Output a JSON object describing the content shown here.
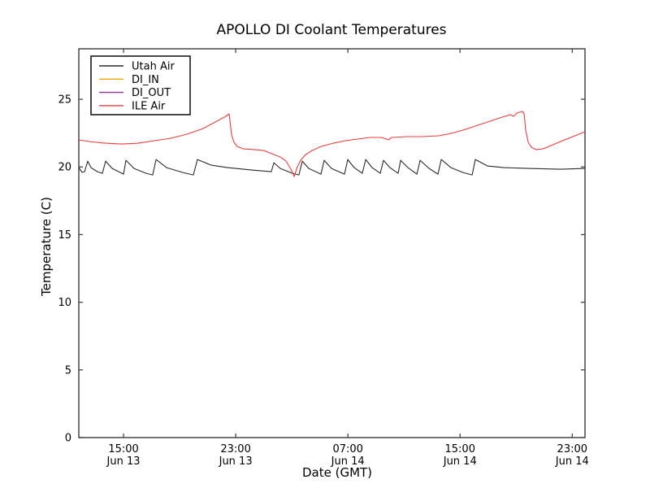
{
  "figure": {
    "background": "#ffffff",
    "frame_color": "#3a3a3a"
  },
  "chart_data": {
    "type": "line",
    "title": "APOLLO DI Coolant Temperatures",
    "xlabel": "Date (GMT)",
    "ylabel": "Temperature (C)",
    "xlim": [
      0,
      36.1
    ],
    "ylim": [
      0,
      28.73
    ],
    "grid": false,
    "legend_position": "upper-left",
    "x_ticks": [
      {
        "t": 3.19,
        "time": "15:00",
        "date": "Jun 13"
      },
      {
        "t": 11.19,
        "time": "23:00",
        "date": "Jun 13"
      },
      {
        "t": 19.19,
        "time": "07:00",
        "date": "Jun 14"
      },
      {
        "t": 27.19,
        "time": "15:00",
        "date": "Jun 14"
      },
      {
        "t": 35.19,
        "time": "23:00",
        "date": "Jun 14"
      }
    ],
    "y_ticks": [
      0,
      5,
      10,
      15,
      20,
      25
    ],
    "series": [
      {
        "name": "Utah Air",
        "color": "#2b2b2b",
        "points": [
          [
            0,
            19.95
          ],
          [
            0.23,
            19.6
          ],
          [
            0.41,
            19.65
          ],
          [
            0.64,
            20.43
          ],
          [
            0.87,
            19.95
          ],
          [
            1.33,
            19.65
          ],
          [
            1.68,
            19.53
          ],
          [
            1.91,
            20.43
          ],
          [
            2.38,
            19.89
          ],
          [
            2.96,
            19.59
          ],
          [
            3.19,
            19.47
          ],
          [
            3.36,
            20.49
          ],
          [
            3.94,
            19.89
          ],
          [
            4.81,
            19.53
          ],
          [
            5.27,
            19.41
          ],
          [
            5.51,
            20.55
          ],
          [
            6.26,
            19.95
          ],
          [
            7.42,
            19.59
          ],
          [
            8.17,
            19.41
          ],
          [
            8.46,
            20.55
          ],
          [
            9.45,
            20.13
          ],
          [
            10.6,
            19.95
          ],
          [
            12.34,
            19.77
          ],
          [
            13.73,
            19.65
          ],
          [
            13.91,
            20.31
          ],
          [
            14.37,
            19.89
          ],
          [
            15.24,
            19.53
          ],
          [
            15.7,
            19.41
          ],
          [
            15.94,
            20.43
          ],
          [
            16.4,
            19.89
          ],
          [
            17.27,
            19.47
          ],
          [
            17.5,
            20.49
          ],
          [
            18.02,
            19.89
          ],
          [
            18.95,
            19.47
          ],
          [
            19.18,
            20.55
          ],
          [
            19.64,
            19.95
          ],
          [
            20.22,
            19.53
          ],
          [
            20.46,
            20.55
          ],
          [
            20.92,
            19.95
          ],
          [
            21.5,
            19.53
          ],
          [
            21.73,
            20.49
          ],
          [
            22.19,
            19.95
          ],
          [
            22.77,
            19.53
          ],
          [
            22.95,
            20.49
          ],
          [
            23.47,
            19.95
          ],
          [
            24.11,
            19.47
          ],
          [
            24.34,
            20.49
          ],
          [
            24.98,
            19.89
          ],
          [
            25.61,
            19.47
          ],
          [
            25.85,
            20.55
          ],
          [
            26.54,
            19.95
          ],
          [
            27.41,
            19.59
          ],
          [
            28.05,
            19.41
          ],
          [
            28.28,
            20.55
          ],
          [
            29.15,
            20.07
          ],
          [
            30.31,
            19.95
          ],
          [
            32.05,
            19.89
          ],
          [
            34.36,
            19.83
          ],
          [
            36.1,
            19.89
          ]
        ]
      },
      {
        "name": "DI_IN",
        "color": "#ffa500",
        "points": []
      },
      {
        "name": "DI_OUT",
        "color": "#993399",
        "points": []
      },
      {
        "name": "ILE Air",
        "color": "#f23c3c",
        "points": [
          [
            0,
            22.0
          ],
          [
            0.75,
            21.88
          ],
          [
            1.91,
            21.75
          ],
          [
            3.07,
            21.69
          ],
          [
            4.23,
            21.75
          ],
          [
            5.39,
            21.94
          ],
          [
            6.55,
            22.12
          ],
          [
            7.71,
            22.42
          ],
          [
            8.87,
            22.84
          ],
          [
            9.74,
            23.32
          ],
          [
            10.49,
            23.74
          ],
          [
            10.72,
            23.92
          ],
          [
            10.78,
            23.44
          ],
          [
            10.89,
            22.42
          ],
          [
            11.07,
            21.82
          ],
          [
            11.3,
            21.51
          ],
          [
            11.76,
            21.33
          ],
          [
            12.63,
            21.27
          ],
          [
            13.21,
            21.21
          ],
          [
            13.79,
            20.97
          ],
          [
            14.37,
            20.73
          ],
          [
            14.78,
            20.43
          ],
          [
            15.13,
            19.83
          ],
          [
            15.36,
            19.29
          ],
          [
            15.59,
            20.01
          ],
          [
            15.82,
            20.49
          ],
          [
            16.17,
            20.91
          ],
          [
            16.63,
            21.21
          ],
          [
            17.27,
            21.51
          ],
          [
            18.14,
            21.75
          ],
          [
            19.01,
            21.94
          ],
          [
            19.88,
            22.06
          ],
          [
            20.75,
            22.18
          ],
          [
            21.62,
            22.18
          ],
          [
            22.08,
            22.0
          ],
          [
            22.31,
            22.18
          ],
          [
            23.36,
            22.24
          ],
          [
            24.51,
            22.24
          ],
          [
            25.67,
            22.3
          ],
          [
            26.54,
            22.48
          ],
          [
            27.41,
            22.72
          ],
          [
            28.28,
            23.02
          ],
          [
            29.15,
            23.32
          ],
          [
            30.02,
            23.62
          ],
          [
            30.77,
            23.86
          ],
          [
            31.01,
            23.74
          ],
          [
            31.24,
            23.98
          ],
          [
            31.64,
            24.1
          ],
          [
            31.76,
            23.92
          ],
          [
            31.87,
            22.72
          ],
          [
            32.05,
            21.82
          ],
          [
            32.28,
            21.45
          ],
          [
            32.63,
            21.27
          ],
          [
            33.09,
            21.33
          ],
          [
            33.79,
            21.63
          ],
          [
            34.65,
            22.0
          ],
          [
            35.52,
            22.36
          ],
          [
            36.1,
            22.6
          ]
        ]
      }
    ]
  },
  "legend": {
    "entries": [
      {
        "label": "Utah Air",
        "color": "#2b2b2b"
      },
      {
        "label": "DI_IN",
        "color": "#ffa500"
      },
      {
        "label": "DI_OUT",
        "color": "#993399"
      },
      {
        "label": "ILE Air",
        "color": "#f23c3c"
      }
    ]
  }
}
